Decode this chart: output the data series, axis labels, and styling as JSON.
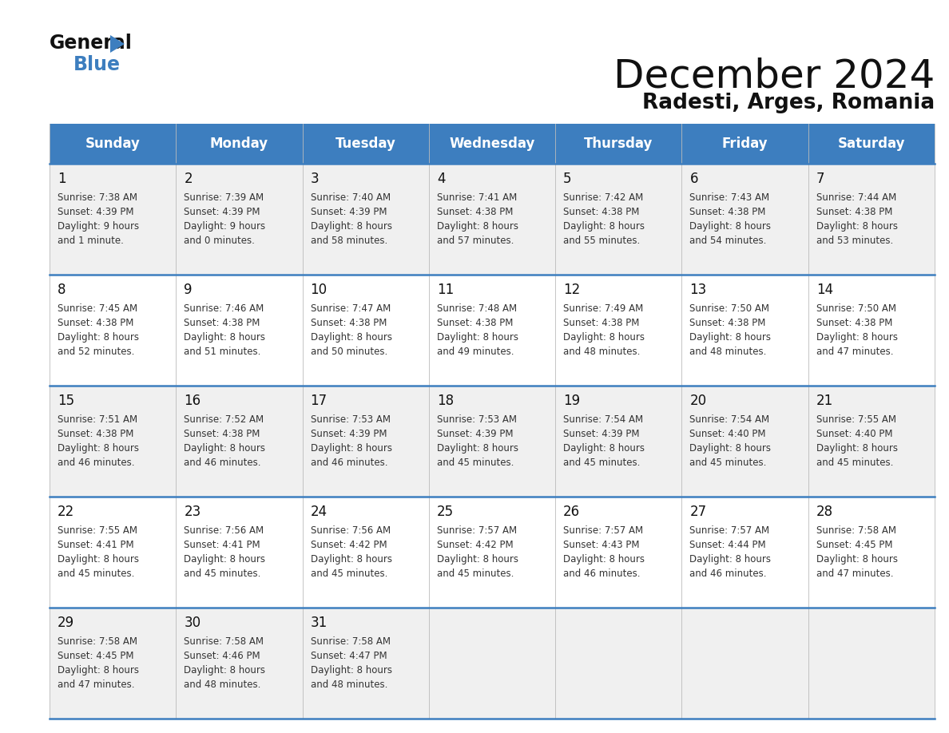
{
  "title": "December 2024",
  "subtitle": "Radesti, Arges, Romania",
  "header_color": "#3d7ebf",
  "header_text_color": "#ffffff",
  "cell_bg_odd": "#f0f0f0",
  "cell_bg_even": "#ffffff",
  "text_color": "#222222",
  "day_headers": [
    "Sunday",
    "Monday",
    "Tuesday",
    "Wednesday",
    "Thursday",
    "Friday",
    "Saturday"
  ],
  "weeks": [
    [
      {
        "day": "1",
        "sunrise": "7:38 AM",
        "sunset": "4:39 PM",
        "dl1": "9 hours",
        "dl2": "and 1 minute."
      },
      {
        "day": "2",
        "sunrise": "7:39 AM",
        "sunset": "4:39 PM",
        "dl1": "9 hours",
        "dl2": "and 0 minutes."
      },
      {
        "day": "3",
        "sunrise": "7:40 AM",
        "sunset": "4:39 PM",
        "dl1": "8 hours",
        "dl2": "and 58 minutes."
      },
      {
        "day": "4",
        "sunrise": "7:41 AM",
        "sunset": "4:38 PM",
        "dl1": "8 hours",
        "dl2": "and 57 minutes."
      },
      {
        "day": "5",
        "sunrise": "7:42 AM",
        "sunset": "4:38 PM",
        "dl1": "8 hours",
        "dl2": "and 55 minutes."
      },
      {
        "day": "6",
        "sunrise": "7:43 AM",
        "sunset": "4:38 PM",
        "dl1": "8 hours",
        "dl2": "and 54 minutes."
      },
      {
        "day": "7",
        "sunrise": "7:44 AM",
        "sunset": "4:38 PM",
        "dl1": "8 hours",
        "dl2": "and 53 minutes."
      }
    ],
    [
      {
        "day": "8",
        "sunrise": "7:45 AM",
        "sunset": "4:38 PM",
        "dl1": "8 hours",
        "dl2": "and 52 minutes."
      },
      {
        "day": "9",
        "sunrise": "7:46 AM",
        "sunset": "4:38 PM",
        "dl1": "8 hours",
        "dl2": "and 51 minutes."
      },
      {
        "day": "10",
        "sunrise": "7:47 AM",
        "sunset": "4:38 PM",
        "dl1": "8 hours",
        "dl2": "and 50 minutes."
      },
      {
        "day": "11",
        "sunrise": "7:48 AM",
        "sunset": "4:38 PM",
        "dl1": "8 hours",
        "dl2": "and 49 minutes."
      },
      {
        "day": "12",
        "sunrise": "7:49 AM",
        "sunset": "4:38 PM",
        "dl1": "8 hours",
        "dl2": "and 48 minutes."
      },
      {
        "day": "13",
        "sunrise": "7:50 AM",
        "sunset": "4:38 PM",
        "dl1": "8 hours",
        "dl2": "and 48 minutes."
      },
      {
        "day": "14",
        "sunrise": "7:50 AM",
        "sunset": "4:38 PM",
        "dl1": "8 hours",
        "dl2": "and 47 minutes."
      }
    ],
    [
      {
        "day": "15",
        "sunrise": "7:51 AM",
        "sunset": "4:38 PM",
        "dl1": "8 hours",
        "dl2": "and 46 minutes."
      },
      {
        "day": "16",
        "sunrise": "7:52 AM",
        "sunset": "4:38 PM",
        "dl1": "8 hours",
        "dl2": "and 46 minutes."
      },
      {
        "day": "17",
        "sunrise": "7:53 AM",
        "sunset": "4:39 PM",
        "dl1": "8 hours",
        "dl2": "and 46 minutes."
      },
      {
        "day": "18",
        "sunrise": "7:53 AM",
        "sunset": "4:39 PM",
        "dl1": "8 hours",
        "dl2": "and 45 minutes."
      },
      {
        "day": "19",
        "sunrise": "7:54 AM",
        "sunset": "4:39 PM",
        "dl1": "8 hours",
        "dl2": "and 45 minutes."
      },
      {
        "day": "20",
        "sunrise": "7:54 AM",
        "sunset": "4:40 PM",
        "dl1": "8 hours",
        "dl2": "and 45 minutes."
      },
      {
        "day": "21",
        "sunrise": "7:55 AM",
        "sunset": "4:40 PM",
        "dl1": "8 hours",
        "dl2": "and 45 minutes."
      }
    ],
    [
      {
        "day": "22",
        "sunrise": "7:55 AM",
        "sunset": "4:41 PM",
        "dl1": "8 hours",
        "dl2": "and 45 minutes."
      },
      {
        "day": "23",
        "sunrise": "7:56 AM",
        "sunset": "4:41 PM",
        "dl1": "8 hours",
        "dl2": "and 45 minutes."
      },
      {
        "day": "24",
        "sunrise": "7:56 AM",
        "sunset": "4:42 PM",
        "dl1": "8 hours",
        "dl2": "and 45 minutes."
      },
      {
        "day": "25",
        "sunrise": "7:57 AM",
        "sunset": "4:42 PM",
        "dl1": "8 hours",
        "dl2": "and 45 minutes."
      },
      {
        "day": "26",
        "sunrise": "7:57 AM",
        "sunset": "4:43 PM",
        "dl1": "8 hours",
        "dl2": "and 46 minutes."
      },
      {
        "day": "27",
        "sunrise": "7:57 AM",
        "sunset": "4:44 PM",
        "dl1": "8 hours",
        "dl2": "and 46 minutes."
      },
      {
        "day": "28",
        "sunrise": "7:58 AM",
        "sunset": "4:45 PM",
        "dl1": "8 hours",
        "dl2": "and 47 minutes."
      }
    ],
    [
      {
        "day": "29",
        "sunrise": "7:58 AM",
        "sunset": "4:45 PM",
        "dl1": "8 hours",
        "dl2": "and 47 minutes."
      },
      {
        "day": "30",
        "sunrise": "7:58 AM",
        "sunset": "4:46 PM",
        "dl1": "8 hours",
        "dl2": "and 48 minutes."
      },
      {
        "day": "31",
        "sunrise": "7:58 AM",
        "sunset": "4:47 PM",
        "dl1": "8 hours",
        "dl2": "and 48 minutes."
      },
      {
        "day": "",
        "sunrise": "",
        "sunset": "",
        "dl1": "",
        "dl2": ""
      },
      {
        "day": "",
        "sunrise": "",
        "sunset": "",
        "dl1": "",
        "dl2": ""
      },
      {
        "day": "",
        "sunrise": "",
        "sunset": "",
        "dl1": "",
        "dl2": ""
      },
      {
        "day": "",
        "sunrise": "",
        "sunset": "",
        "dl1": "",
        "dl2": ""
      }
    ]
  ],
  "figw": 11.88,
  "figh": 9.18,
  "dpi": 100
}
